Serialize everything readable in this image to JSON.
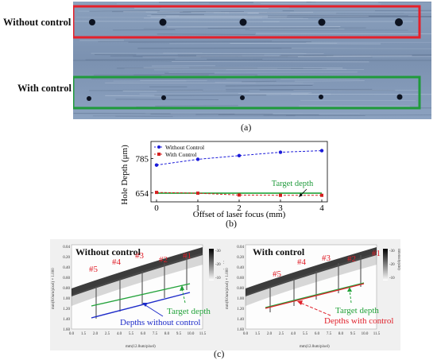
{
  "panel_a": {
    "row_top_label": "Without control",
    "row_bottom_label": "With control",
    "caption": "(a)",
    "colors": {
      "top_box": "#e5202a",
      "bottom_box": "#1f9a3b",
      "metal": "#7f95b4"
    }
  },
  "panel_b": {
    "caption": "(b)",
    "chart_data": {
      "type": "line",
      "xlabel": "Offset of laser focus (mm)",
      "ylabel": "Hole Depth (μm)",
      "xticks": [
        "0",
        "1",
        "2",
        "3",
        "4"
      ],
      "yticks": [
        "654",
        "785"
      ],
      "xlim": [
        0,
        4
      ],
      "ylim": [
        620,
        850
      ],
      "series": [
        {
          "name": "Without Control",
          "color": "#1b1bd9",
          "marker": "circle",
          "x": [
            0,
            1,
            2,
            3,
            4
          ],
          "y": [
            760,
            782,
            796,
            809,
            815
          ]
        },
        {
          "name": "With Control",
          "color": "#d42020",
          "marker": "square",
          "x": [
            0,
            1,
            2,
            3,
            4
          ],
          "y": [
            656,
            653,
            646,
            645,
            645
          ]
        }
      ],
      "annotations": [
        {
          "text": "Target depth",
          "color": "#1f9a3b"
        }
      ],
      "target_line": {
        "color": "#22a23a",
        "y": 653
      },
      "legend": "top-left"
    }
  },
  "panel_c": {
    "caption": "(c)",
    "left": {
      "title": "Without control",
      "hole_labels": [
        "#5",
        "#4",
        "#3",
        "#2",
        "#1"
      ],
      "target_label": "Target depth",
      "depth_label": "Depths without control",
      "x_axis_title": "mm(12.0um/pixel)",
      "x_ticks": [
        "0.0",
        "1.5",
        "2.0",
        "2.5",
        "4.0",
        "5.5",
        "6.0",
        "7.5",
        "8.0",
        "9.5",
        "10.0",
        "11.5"
      ],
      "y_ticks": [
        "0.04",
        "0.20",
        "0.40",
        "0.60",
        "0.80",
        "1.00",
        "1.20",
        "1.40",
        "1.60"
      ],
      "y_axis_title": "mm(8.0um/pixel) × 1.000",
      "colorbar_ticks": [
        "-30",
        "-20",
        "-10"
      ],
      "colorbar_title": "Intensity(dB)"
    },
    "right": {
      "title": "With control",
      "hole_labels": [
        "#5",
        "#4",
        "#3",
        "#2",
        "#1"
      ],
      "target_label": "Target depth",
      "depth_label": "Depths with control",
      "x_axis_title": "mm(12.0um/pixel)",
      "x_ticks": [
        "0.0",
        "1.5",
        "2.0",
        "2.5",
        "4.0",
        "5.5",
        "6.0",
        "7.5",
        "8.0",
        "9.5",
        "10.0",
        "11.5"
      ],
      "y_ticks": [
        "0.04",
        "0.20",
        "0.40",
        "0.60",
        "0.80",
        "1.00",
        "1.20",
        "1.40",
        "1.60"
      ],
      "y_axis_title": "mm(8.0um/pixel) × 1.000",
      "colorbar_ticks": [
        "-30",
        "-20",
        "-10"
      ],
      "colorbar_title": "Intensity(dB)"
    },
    "colors": {
      "label_red": "#e0202a",
      "target_green": "#22a23a",
      "depth_blue": "#1d2bc9",
      "depth_red": "#e0202a"
    }
  }
}
